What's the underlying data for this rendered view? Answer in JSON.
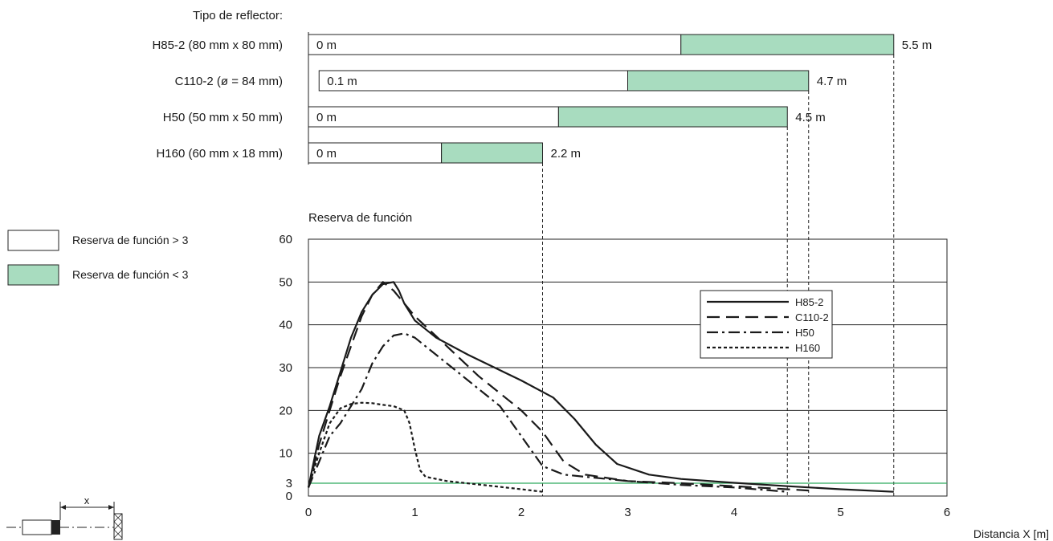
{
  "reflector_header": "Tipo de reflector:",
  "legend_box": [
    {
      "label": "Reserva de función > 3",
      "color": "#ffffff"
    },
    {
      "label": "Reserva de función < 3",
      "color": "#a8dcbf"
    }
  ],
  "range_bars": [
    {
      "name": "H85-2 (80 mm x 80 mm)",
      "min": 0,
      "min_label": "0 m",
      "low_reserve_from": 3.5,
      "max": 5.5,
      "max_label": "5.5 m"
    },
    {
      "name": "C110-2 (ø = 84 mm)",
      "min": 0.1,
      "min_label": "0.1 m",
      "low_reserve_from": 3.0,
      "max": 4.7,
      "max_label": "4.7 m"
    },
    {
      "name": "H50 (50 mm x 50 mm)",
      "min": 0,
      "min_label": "0 m",
      "low_reserve_from": 2.35,
      "max": 4.5,
      "max_label": "4.5 m"
    },
    {
      "name": "H160 (60 mm x 18 mm)",
      "min": 0,
      "min_label": "0 m",
      "low_reserve_from": 1.25,
      "max": 2.2,
      "max_label": "2.2 m"
    }
  ],
  "chart_data": {
    "type": "line",
    "title": "Reserva de función",
    "xlabel": "Distancia X [m]",
    "ylabel": "Reserva de función",
    "xlim": [
      0,
      6
    ],
    "ylim": [
      0,
      60
    ],
    "x_ticks": [
      0,
      1,
      2,
      3,
      4,
      5,
      6
    ],
    "y_ticks": [
      0,
      3,
      10,
      20,
      30,
      40,
      50,
      60
    ],
    "grid": true,
    "legend_position": "top-right",
    "threshold": {
      "value": 3,
      "color": "#2eaa5e"
    },
    "series": [
      {
        "name": "H85-2",
        "dash": "solid",
        "points": [
          [
            0,
            2
          ],
          [
            0.05,
            8
          ],
          [
            0.1,
            14
          ],
          [
            0.2,
            21
          ],
          [
            0.3,
            29
          ],
          [
            0.4,
            37
          ],
          [
            0.5,
            43
          ],
          [
            0.6,
            47
          ],
          [
            0.7,
            49.5
          ],
          [
            0.8,
            50
          ],
          [
            0.85,
            48
          ],
          [
            0.9,
            45
          ],
          [
            1.0,
            41
          ],
          [
            1.2,
            37
          ],
          [
            1.5,
            33
          ],
          [
            2.0,
            27
          ],
          [
            2.3,
            23
          ],
          [
            2.5,
            18
          ],
          [
            2.7,
            12
          ],
          [
            2.9,
            7.5
          ],
          [
            3.2,
            5
          ],
          [
            3.5,
            4
          ],
          [
            4.0,
            3.1
          ],
          [
            4.5,
            2.3
          ],
          [
            5.0,
            1.6
          ],
          [
            5.5,
            1
          ]
        ]
      },
      {
        "name": "C110-2",
        "dash": "long-dash",
        "points": [
          [
            0,
            2
          ],
          [
            0.05,
            7
          ],
          [
            0.1,
            12
          ],
          [
            0.2,
            20
          ],
          [
            0.3,
            28
          ],
          [
            0.4,
            35
          ],
          [
            0.5,
            42
          ],
          [
            0.6,
            47
          ],
          [
            0.7,
            50
          ],
          [
            0.8,
            48
          ],
          [
            0.9,
            45
          ],
          [
            1.0,
            42
          ],
          [
            1.3,
            35
          ],
          [
            1.6,
            28
          ],
          [
            2.0,
            20
          ],
          [
            2.2,
            15
          ],
          [
            2.4,
            8
          ],
          [
            2.6,
            5
          ],
          [
            3.0,
            3.5
          ],
          [
            3.5,
            3
          ],
          [
            4.0,
            2.3
          ],
          [
            4.7,
            1.3
          ]
        ]
      },
      {
        "name": "H50",
        "dash": "dash-dot",
        "points": [
          [
            0,
            2
          ],
          [
            0.1,
            8
          ],
          [
            0.2,
            14
          ],
          [
            0.3,
            17
          ],
          [
            0.4,
            21
          ],
          [
            0.5,
            25
          ],
          [
            0.6,
            31
          ],
          [
            0.7,
            35
          ],
          [
            0.8,
            37.5
          ],
          [
            0.9,
            38
          ],
          [
            1.0,
            37
          ],
          [
            1.2,
            33
          ],
          [
            1.5,
            27
          ],
          [
            1.8,
            21
          ],
          [
            2.0,
            14
          ],
          [
            2.2,
            7
          ],
          [
            2.4,
            5
          ],
          [
            3.0,
            3.5
          ],
          [
            3.5,
            2.6
          ],
          [
            4.0,
            2
          ],
          [
            4.5,
            1
          ]
        ]
      },
      {
        "name": "H160",
        "dash": "dotted",
        "points": [
          [
            0,
            2
          ],
          [
            0.1,
            10
          ],
          [
            0.2,
            17
          ],
          [
            0.3,
            20.5
          ],
          [
            0.4,
            21.5
          ],
          [
            0.5,
            21.8
          ],
          [
            0.6,
            21.7
          ],
          [
            0.7,
            21.3
          ],
          [
            0.8,
            21
          ],
          [
            0.9,
            20
          ],
          [
            0.95,
            17
          ],
          [
            1.0,
            11
          ],
          [
            1.05,
            6
          ],
          [
            1.1,
            4.5
          ],
          [
            1.3,
            3.5
          ],
          [
            1.6,
            2.7
          ],
          [
            2.0,
            1.6
          ],
          [
            2.2,
            1
          ]
        ]
      }
    ]
  },
  "diagram": {
    "dimension_label": "x"
  }
}
